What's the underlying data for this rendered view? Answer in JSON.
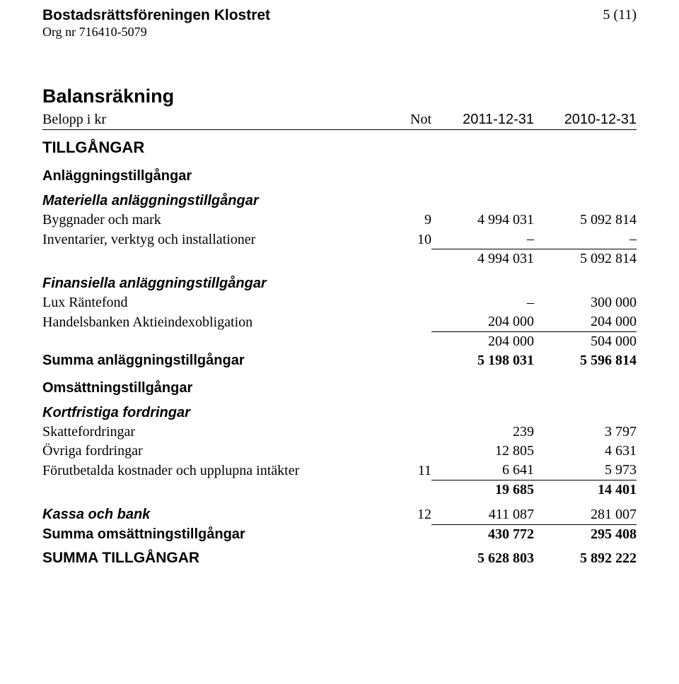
{
  "header": {
    "org_name": "Bostadsrättsföreningen Klostret",
    "org_number": "Org nr 716410-5079",
    "page_num": "5 (11)"
  },
  "title": "Balansräkning",
  "columns": {
    "label": "Belopp i kr",
    "note": "Not",
    "c1": "2011-12-31",
    "c2": "2010-12-31"
  },
  "s1": {
    "hdr": "TILLGÅNGAR"
  },
  "s2": {
    "hdr": "Anläggningstillgångar"
  },
  "s3": {
    "hdr": "Materiella anläggningstillgångar",
    "r1": {
      "l": "Byggnader och mark",
      "n": "9",
      "c1": "4 994 031",
      "c2": "5 092 814"
    },
    "r2": {
      "l": "Inventarier, verktyg och installationer",
      "n": "10",
      "c1": "–",
      "c2": "–"
    },
    "sum": {
      "c1": "4 994 031",
      "c2": "5 092 814"
    }
  },
  "s4": {
    "hdr": "Finansiella anläggningstillgångar",
    "r1": {
      "l": "Lux Räntefond",
      "c1": "–",
      "c2": "300 000"
    },
    "r2": {
      "l": "Handelsbanken Aktieindexobligation",
      "c1": "204 000",
      "c2": "204 000"
    },
    "sum": {
      "c1": "204 000",
      "c2": "504 000"
    }
  },
  "s5": {
    "l": "Summa anläggningstillgångar",
    "c1": "5 198 031",
    "c2": "5 596 814"
  },
  "s6": {
    "hdr": "Omsättningstillgångar"
  },
  "s7": {
    "hdr": "Kortfristiga fordringar",
    "r1": {
      "l": "Skattefordringar",
      "c1": "239",
      "c2": "3 797"
    },
    "r2": {
      "l": "Övriga fordringar",
      "c1": "12 805",
      "c2": "4 631"
    },
    "r3": {
      "l": "Förutbetalda kostnader och upplupna intäkter",
      "n": "11",
      "c1": "6 641",
      "c2": "5 973"
    },
    "sum": {
      "c1": "19 685",
      "c2": "14 401"
    }
  },
  "s8": {
    "l": "Kassa och bank",
    "n": "12",
    "c1": "411 087",
    "c2": "281 007"
  },
  "s9": {
    "l": "Summa omsättningstillgångar",
    "c1": "430 772",
    "c2": "295 408"
  },
  "s10": {
    "l": "SUMMA TILLGÅNGAR",
    "c1": "5 628 803",
    "c2": "5 892 222"
  }
}
